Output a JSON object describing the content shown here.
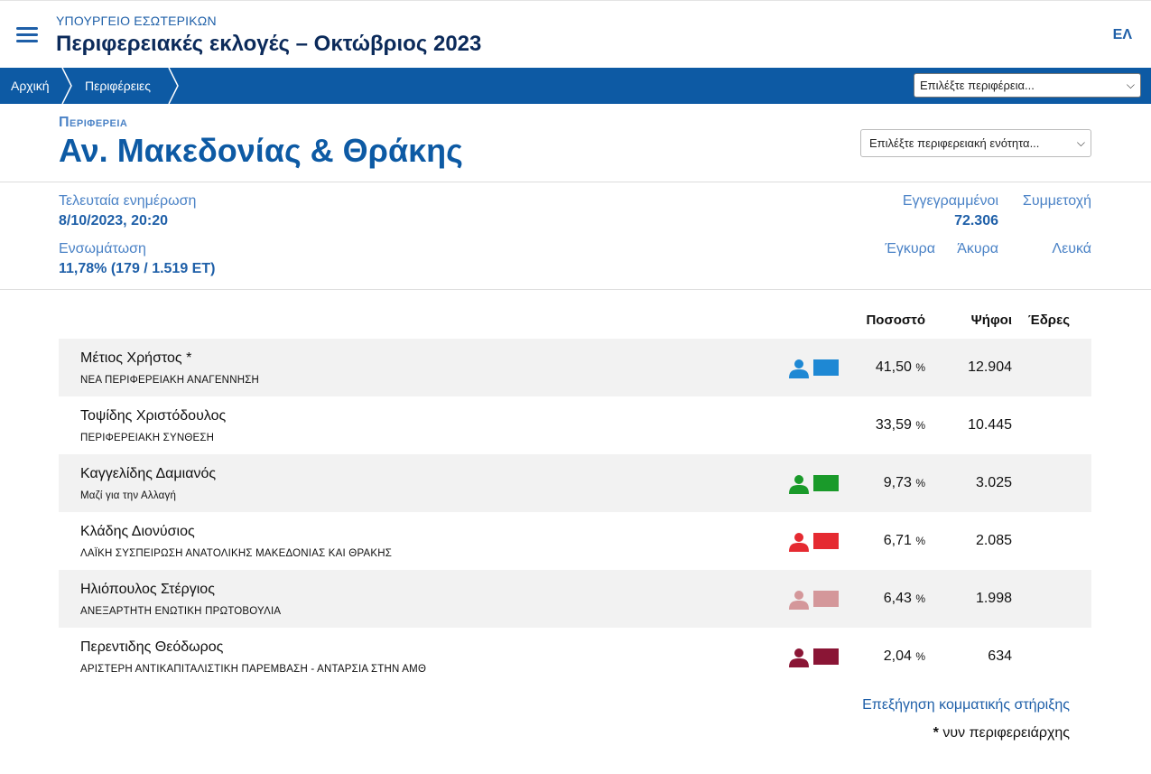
{
  "header": {
    "ministry": "ΥΠΟΥΡΓΕΙΟ ΕΣΩΤΕΡΙΚΩΝ",
    "title": "Περιφερειακές εκλογές – Οκτώβριος 2023",
    "lang": "ΕΛ"
  },
  "breadcrumb": {
    "home": "Αρχική",
    "regions": "Περιφέρειες",
    "region_select": "Επιλέξτε περιφέρεια..."
  },
  "region": {
    "label": "Περιφερεια",
    "name": "Αν. Μακεδονίας & Θράκης",
    "unit_select": "Επιλέξτε περιφερειακή ενότητα..."
  },
  "stats": {
    "updated_label": "Τελευταία ενημέρωση",
    "updated_value": "8/10/2023, 20:20",
    "integration_label": "Ενσωμάτωση",
    "integration_value": "11,78% (179 / 1.519 ΕΤ)",
    "registered_label": "Εγγεγραμμένοι",
    "registered_value": "72.306",
    "turnout_label": "Συμμετοχή",
    "valid_label": "Έγκυρα",
    "invalid_label": "Άκυρα",
    "blank_label": "Λευκά"
  },
  "table": {
    "headers": {
      "percent": "Ποσοστό",
      "votes": "Ψήφοι",
      "seats": "Έδρες"
    },
    "pct_unit": "%",
    "rows": [
      {
        "candidate": "Μέτιος Χρήστος *",
        "party": "ΝΕΑ ΠΕΡΙΦΕΡΕΙΑΚΗ ΑΝΑΓΕΝΝΗΣΗ",
        "percent": "41,50",
        "votes": "12.904",
        "color": "#1e88d4",
        "has_flag": true
      },
      {
        "candidate": "Τοψίδης Χριστόδουλος",
        "party": "ΠΕΡΙΦΕΡΕΙΑΚΗ ΣΥΝΘΕΣΗ",
        "percent": "33,59",
        "votes": "10.445",
        "color": "",
        "has_flag": false
      },
      {
        "candidate": "Καγγελίδης Δαμιανός",
        "party": "Μαζί για την Αλλαγή",
        "percent": "9,73",
        "votes": "3.025",
        "color": "#1a9a2a",
        "has_flag": true
      },
      {
        "candidate": "Κλάδης Διονύσιος",
        "party": "ΛΑΪΚΗ ΣΥΣΠΕΙΡΩΣΗ ΑΝΑΤΟΛΙΚΗΣ ΜΑΚΕΔΟΝΙΑΣ ΚΑΙ ΘΡΑΚΗΣ",
        "percent": "6,71",
        "votes": "2.085",
        "color": "#e52a31",
        "has_flag": true
      },
      {
        "candidate": "Ηλιόπουλος Στέργιος",
        "party": "ΑΝΕΞΑΡΤΗΤΗ ΕΝΩΤΙΚΗ ΠΡΩΤΟΒΟΥΛΙΑ",
        "percent": "6,43",
        "votes": "1.998",
        "color": "#d4979a",
        "has_flag": true
      },
      {
        "candidate": "Περεντιδης Θεόδωρος",
        "party": "ΑΡΙΣΤΕΡΗ ΑΝΤΙΚΑΠΙΤΑΛΙΣΤΙΚΗ ΠΑΡΕΜΒΑΣΗ - ΑΝΤΑΡΣΙΑ ΣΤΗΝ ΑΜΘ",
        "percent": "2,04",
        "votes": "634",
        "color": "#8a1535",
        "has_flag": true
      }
    ]
  },
  "footer": {
    "explain_link": "Επεξήγηση κομματικής στήριξης",
    "footnote_mark": "*",
    "footnote_text": " νυν περιφερειάρχης"
  }
}
